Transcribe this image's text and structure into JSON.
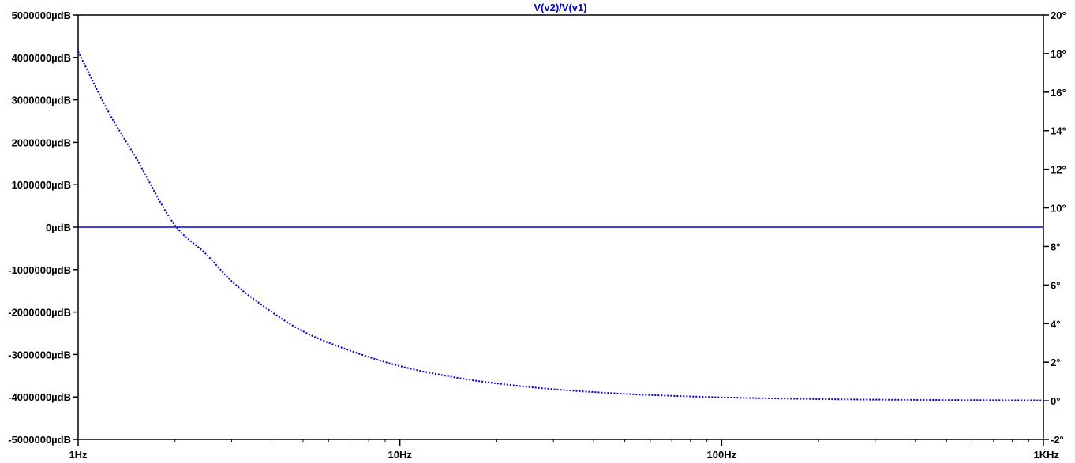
{
  "chart_data": {
    "type": "line",
    "title": "V(v2)/V(v1)",
    "x_axis": {
      "scale": "log",
      "range": [
        1,
        1000
      ],
      "ticks": [
        1,
        10,
        100,
        1000
      ],
      "tick_labels": [
        "1Hz",
        "10Hz",
        "100Hz",
        "1KHz"
      ],
      "minor_ticks": [
        2,
        3,
        4,
        5,
        6,
        7,
        8,
        9,
        20,
        30,
        40,
        50,
        60,
        70,
        80,
        90,
        200,
        300,
        400,
        500,
        600,
        700,
        800,
        900
      ]
    },
    "y_left": {
      "unit": "µdB",
      "range": [
        -5000000,
        5000000
      ],
      "ticks": [
        5000000,
        4000000,
        3000000,
        2000000,
        1000000,
        0,
        -1000000,
        -2000000,
        -3000000,
        -4000000,
        -5000000
      ],
      "tick_labels": [
        "5000000µdB",
        "4000000µdB",
        "3000000µdB",
        "2000000µdB",
        "1000000µdB",
        "0µdB",
        "-1000000µdB",
        "-2000000µdB",
        "-3000000µdB",
        "-4000000µdB",
        "-5000000µdB"
      ]
    },
    "y_right": {
      "unit": "°",
      "range": [
        -2,
        20
      ],
      "ticks": [
        20,
        18,
        16,
        14,
        12,
        10,
        8,
        6,
        4,
        2,
        0,
        -2
      ],
      "tick_labels": [
        "20°",
        "18°",
        "16°",
        "14°",
        "12°",
        "10°",
        "8°",
        "6°",
        "4°",
        "2°",
        "0°",
        "-2°"
      ]
    },
    "series": [
      {
        "style": "solid",
        "axis": "left",
        "x": [
          1,
          10,
          100,
          1000
        ],
        "y": [
          0,
          0,
          0,
          0
        ]
      },
      {
        "style": "dotted",
        "axis": "right",
        "x": [
          1,
          1.25,
          1.5,
          2,
          2.5,
          3,
          4,
          5,
          7,
          10,
          15,
          20,
          30,
          50,
          70,
          100,
          200,
          300,
          500,
          1000
        ],
        "y": [
          18.1,
          14.9,
          12.7,
          9.1,
          7.6,
          6.2,
          4.6,
          3.6,
          2.6,
          1.8,
          1.2,
          0.9,
          0.6,
          0.36,
          0.26,
          0.18,
          0.09,
          0.06,
          0.04,
          0.02
        ]
      }
    ],
    "colors": {
      "series": "#0000cc",
      "frame": "#000000",
      "title": "#0000cc"
    },
    "grid": false,
    "legend": "none"
  }
}
